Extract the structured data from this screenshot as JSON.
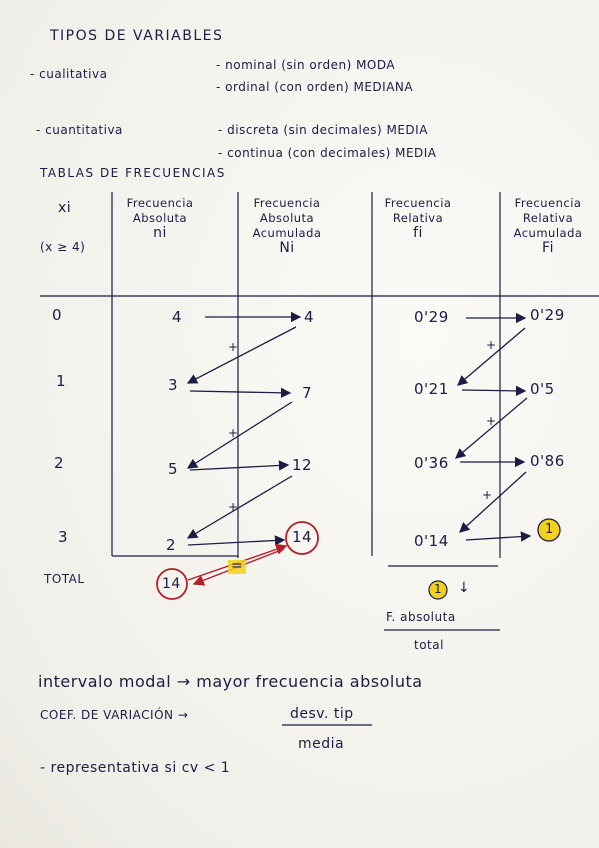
{
  "title": "TIPOS DE VARIABLES",
  "types": {
    "cualitativa": "- cualitativa",
    "nominal": "- nominal (sin orden) MODA",
    "ordinal": "- ordinal (con orden) MEDIANA",
    "cuantitativa": "- cuantitativa",
    "discreta": "- discreta (sin decimales) MEDIA",
    "continua": "- continua (con decimales) MEDIA"
  },
  "tables_title": "TABLAS DE FRECUENCIAS",
  "columns": {
    "xi": {
      "symbol": "xi",
      "note": "(x ≥ 4)"
    },
    "ni": {
      "line1": "Frecuencia",
      "line2": "Absoluta",
      "symbol": "ni"
    },
    "Ni": {
      "line1": "Frecuencia",
      "line2": "Absoluta",
      "line3": "Acumulada",
      "symbol": "Ni"
    },
    "fi": {
      "line1": "Frecuencia",
      "line2": "Relativa",
      "symbol": "fi"
    },
    "Fi": {
      "line1": "Frecuencia",
      "line2": "Relativa",
      "line3": "Acumulada",
      "symbol": "Fi"
    }
  },
  "rows": [
    {
      "xi": "0",
      "ni": "4",
      "Ni": "4",
      "fi": "0'29",
      "Fi": "0'29"
    },
    {
      "xi": "1",
      "ni": "3",
      "Ni": "7",
      "fi": "0'21",
      "Fi": "0'5"
    },
    {
      "xi": "2",
      "ni": "5",
      "Ni": "12",
      "fi": "0'36",
      "Fi": "0'86"
    },
    {
      "xi": "3",
      "ni": "2",
      "Ni": "14",
      "fi": "0'14",
      "Fi": "1"
    }
  ],
  "total": {
    "label": "TOTAL",
    "ni_total": "14",
    "fi_total": "1",
    "equal_sign": "=",
    "plus_sign": "+",
    "down_arrow": "↓"
  },
  "formula_fi": {
    "numerator": "F. absoluta",
    "denominator": "total"
  },
  "notes": {
    "intervalo": "intervalo modal → mayor frecuencia absoluta",
    "coef": "COEF. DE VARIACIÓN →",
    "coef_num": "desv. tip",
    "coef_den": "media",
    "representativa": "- representativa si cv < 1"
  },
  "colors": {
    "ink": "#1a1d44",
    "circle_red": "#b3202a",
    "highlight_yellow": "#f2d21b"
  }
}
